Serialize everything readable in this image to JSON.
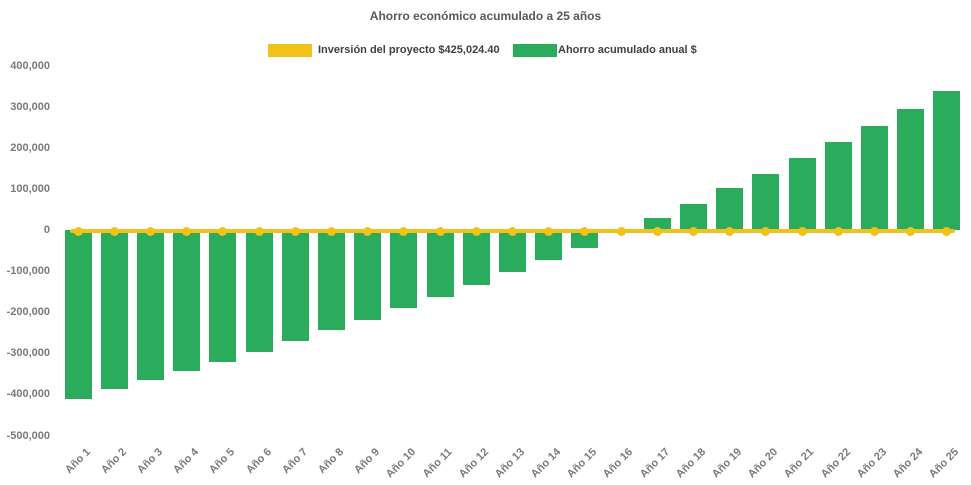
{
  "title": "Ahorro económico acumulado a 25 años",
  "legend": {
    "items": [
      {
        "label": "Inversión del proyecto $425,024.40",
        "color": "#F2C218"
      },
      {
        "label": "Ahorro acumulado anual $",
        "color": "#2BAC5C"
      }
    ]
  },
  "colors": {
    "bar_green": "#2BAC5C",
    "line_yellow": "#F2C218",
    "title_text": "#595959",
    "legend_text": "#404040",
    "axis_text": "#7a7a7a",
    "background": "#ffffff"
  },
  "chart_data": {
    "type": "bar",
    "title": "Ahorro económico acumulado a 25 años",
    "categories": [
      "Año 1",
      "Año 2",
      "Año 3",
      "Año 4",
      "Año 5",
      "Año 6",
      "Año 7",
      "Año 8",
      "Año 9",
      "Año 10",
      "Año 11",
      "Año 12",
      "Año 13",
      "Año 14",
      "Año 15",
      "Año 16",
      "Año 17",
      "Año 18",
      "Año 19",
      "Año 20",
      "Año 21",
      "Año 22",
      "Año 23",
      "Año 24",
      "Año 25"
    ],
    "series": [
      {
        "name": "Ahorro acumulado anual $",
        "type": "bar",
        "color": "#2BAC5C",
        "values": [
          -410000,
          -388000,
          -366000,
          -342000,
          -320000,
          -296000,
          -271000,
          -243000,
          -219000,
          -190000,
          -164000,
          -134000,
          -102000,
          -73000,
          -45000,
          -4000,
          30000,
          63000,
          101000,
          136000,
          176000,
          215000,
          254000,
          295000,
          338000
        ]
      },
      {
        "name": "Inversión del proyecto $425,024.40",
        "type": "line",
        "color": "#F2C218",
        "marker": "circle",
        "values": [
          0,
          0,
          0,
          0,
          0,
          0,
          0,
          0,
          0,
          0,
          0,
          0,
          0,
          0,
          0,
          0,
          0,
          0,
          0,
          0,
          0,
          0,
          0,
          0,
          0
        ]
      }
    ],
    "xlabel": "",
    "ylabel": "",
    "ylim": [
      -500000,
      400000
    ],
    "ytick_step": 100000,
    "ytick_labels": [
      "400,000",
      "300,000",
      "200,000",
      "100,000",
      "0",
      "-100,000",
      "-200,000",
      "-300,000",
      "-400,000",
      "-500,000"
    ],
    "grid": false,
    "legend_position": "top"
  }
}
